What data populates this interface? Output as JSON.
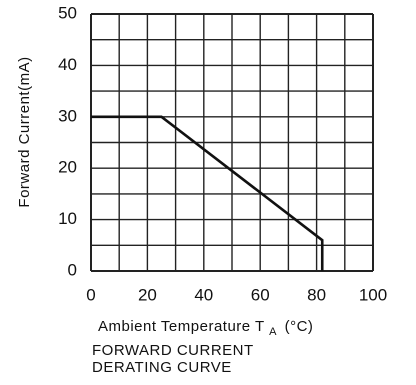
{
  "chart_data": {
    "type": "line",
    "ylabel": "Forward Current(mA)",
    "xlabel": "Ambient Temperature T",
    "xlabel_subscript": "A",
    "xlabel_unit": "(°C)",
    "caption": [
      "FORWARD CURRENT",
      "DERATING CURVE"
    ],
    "xlim": [
      0,
      100
    ],
    "ylim": [
      0,
      50
    ],
    "x_ticks": [
      0,
      20,
      40,
      60,
      80,
      100
    ],
    "y_ticks": [
      0,
      10,
      20,
      30,
      40,
      50
    ],
    "grid": true,
    "series": [
      {
        "points": [
          [
            0,
            30
          ],
          [
            25,
            30
          ],
          [
            82,
            6
          ],
          [
            82,
            0
          ]
        ]
      }
    ],
    "colors": {
      "line": "#111111",
      "grid": "#222222"
    }
  }
}
